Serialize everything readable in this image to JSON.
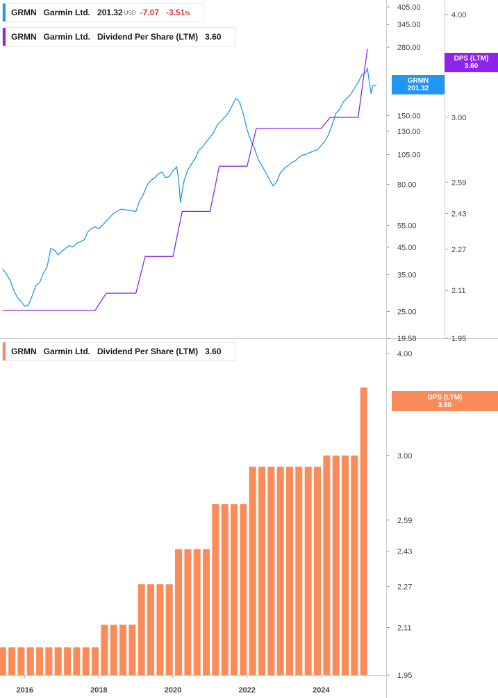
{
  "legend_price": {
    "ticker": "GRMN",
    "company": "Garmin Ltd.",
    "price": "201.32",
    "currency": "USD",
    "change": "-7.07",
    "change_pct": "-3.51",
    "pct_sign": "%"
  },
  "legend_dps_top": {
    "ticker": "GRMN",
    "company": "Garmin Ltd.",
    "metric": "Dividend Per Share (LTM)",
    "value": "3.60"
  },
  "legend_dps_bottom": {
    "ticker": "GRMN",
    "company": "Garmin Ltd.",
    "metric": "Dividend Per Share (LTM)",
    "value": "3.60"
  },
  "tags": {
    "price_name": "GRMN",
    "price_value": "201.32",
    "dps_top_name": "DPS (LTM)",
    "dps_top_value": "3.60",
    "dps_bottom_name": "DPS (LTM)",
    "dps_bottom_value": "3.60"
  },
  "colors": {
    "price_line": "#2196f3",
    "dps_line": "#8e24e8",
    "dps_bar": "#fb8c5a"
  },
  "chart_data": [
    {
      "type": "line",
      "name": "price",
      "scale": "log",
      "price_axis_ticks": [
        "405.00",
        "345.00",
        "280.00",
        "150.00",
        "130.00",
        "105.00",
        "80.00",
        "55.00",
        "45.00",
        "35.00",
        "25.00",
        "19.58"
      ],
      "dps_axis_ticks": [
        "4.00",
        "3.00",
        "2.59",
        "2.43",
        "2.27",
        "2.11",
        "1.95"
      ],
      "series": [
        {
          "name": "GRMN",
          "x": [
            2015.4,
            2015.5,
            2015.6,
            2015.7,
            2015.8,
            2015.9,
            2016.0,
            2016.1,
            2016.2,
            2016.3,
            2016.4,
            2016.5,
            2016.6,
            2016.7,
            2016.8,
            2016.9,
            2017.0,
            2017.1,
            2017.2,
            2017.3,
            2017.4,
            2017.5,
            2017.6,
            2017.7,
            2017.8,
            2017.9,
            2018.0,
            2018.2,
            2018.4,
            2018.6,
            2018.8,
            2019.0,
            2019.1,
            2019.2,
            2019.3,
            2019.4,
            2019.5,
            2019.6,
            2019.7,
            2019.8,
            2019.9,
            2020.0,
            2020.1,
            2020.15,
            2020.2,
            2020.25,
            2020.3,
            2020.4,
            2020.5,
            2020.6,
            2020.7,
            2020.8,
            2020.9,
            2021.0,
            2021.1,
            2021.2,
            2021.3,
            2021.4,
            2021.5,
            2021.6,
            2021.7,
            2021.8,
            2021.9,
            2022.0,
            2022.1,
            2022.2,
            2022.3,
            2022.4,
            2022.5,
            2022.6,
            2022.7,
            2022.8,
            2022.9,
            2023.0,
            2023.1,
            2023.2,
            2023.3,
            2023.4,
            2023.5,
            2023.6,
            2023.7,
            2023.8,
            2023.9,
            2024.0,
            2024.1,
            2024.2,
            2024.3,
            2024.4,
            2024.5,
            2024.6,
            2024.7,
            2024.8,
            2024.9,
            2025.0,
            2025.1,
            2025.2,
            2025.25,
            2025.3,
            2025.35,
            2025.4,
            2025.5
          ],
          "y": [
            37,
            35,
            33,
            30,
            28,
            27,
            26,
            26.5,
            29,
            32,
            33,
            36,
            38,
            45,
            44,
            42,
            43,
            44,
            45,
            44.5,
            46,
            47,
            48,
            52,
            54,
            55,
            54,
            58,
            62,
            64,
            63,
            62,
            68,
            72,
            78,
            82,
            84,
            88,
            90,
            86,
            87,
            92,
            95,
            85,
            68,
            75,
            82,
            90,
            95,
            100,
            108,
            112,
            118,
            124,
            130,
            140,
            145,
            150,
            155,
            165,
            175,
            168,
            150,
            130,
            118,
            110,
            100,
            95,
            90,
            85,
            80,
            83,
            90,
            93,
            95,
            97,
            98,
            101,
            103,
            104,
            106,
            108,
            110,
            115,
            120,
            128,
            140,
            155,
            160,
            170,
            175,
            180,
            190,
            200,
            215,
            220,
            230,
            205,
            185,
            200,
            201.32
          ]
        },
        {
          "name": "DPS (LTM)",
          "axis": "dps",
          "x": [
            2015.4,
            2017.9,
            2018.2,
            2019.0,
            2019.25,
            2020.0,
            2020.25,
            2021.0,
            2021.25,
            2022.0,
            2022.25,
            2024.0,
            2024.25,
            2025.0,
            2025.25
          ],
          "y": [
            2.04,
            2.04,
            2.1,
            2.1,
            2.24,
            2.24,
            2.44,
            2.44,
            2.68,
            2.68,
            2.92,
            2.92,
            3.0,
            3.0,
            3.6
          ]
        }
      ]
    },
    {
      "type": "bar",
      "name": "DPS (LTM)",
      "axis_ticks": [
        "4.00",
        "3.00",
        "2.59",
        "2.43",
        "2.27",
        "2.11",
        "1.95"
      ],
      "x_ticks": [
        "2016",
        "2018",
        "2020",
        "2022",
        "2024"
      ],
      "x": [
        2015.4,
        2015.65,
        2015.9,
        2016.15,
        2016.4,
        2016.65,
        2016.9,
        2017.15,
        2017.4,
        2017.65,
        2017.9,
        2018.15,
        2018.4,
        2018.65,
        2018.9,
        2019.15,
        2019.4,
        2019.65,
        2019.9,
        2020.15,
        2020.4,
        2020.65,
        2020.9,
        2021.15,
        2021.4,
        2021.65,
        2021.9,
        2022.15,
        2022.4,
        2022.65,
        2022.9,
        2023.15,
        2023.4,
        2023.65,
        2023.9,
        2024.15,
        2024.4,
        2024.65,
        2024.9,
        2025.15
      ],
      "values": [
        2.04,
        2.04,
        2.04,
        2.04,
        2.04,
        2.04,
        2.04,
        2.04,
        2.04,
        2.04,
        2.04,
        2.12,
        2.12,
        2.12,
        2.12,
        2.28,
        2.28,
        2.28,
        2.28,
        2.44,
        2.44,
        2.44,
        2.44,
        2.68,
        2.68,
        2.68,
        2.68,
        2.92,
        2.92,
        2.92,
        2.92,
        2.92,
        2.92,
        2.92,
        2.92,
        3.0,
        3.0,
        3.0,
        3.0,
        3.6
      ]
    }
  ]
}
